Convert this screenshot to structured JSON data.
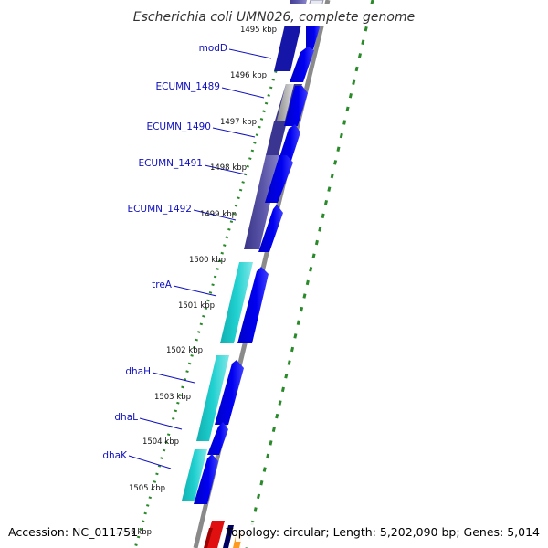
{
  "header": {
    "title": "Escherichia coli UMN026, complete genome"
  },
  "footer": {
    "accession": "Accession: NC_011751",
    "summary": "Topology: circular; Length: 5,202,090 bp; Genes: 5,014"
  },
  "ticks": [
    {
      "label": "1495 kbp"
    },
    {
      "label": "1496 kbp"
    },
    {
      "label": "1497 kbp"
    },
    {
      "label": "1498 kbp"
    },
    {
      "label": "1499 kbp"
    },
    {
      "label": "1500 kbp"
    },
    {
      "label": "1501 kbp"
    },
    {
      "label": "1502 kbp"
    },
    {
      "label": "1503 kbp"
    },
    {
      "label": "1504 kbp"
    },
    {
      "label": "1505 kbp"
    },
    {
      "label": "1506 kbp"
    }
  ],
  "genes": [
    {
      "label": "modD"
    },
    {
      "label": "ECUMN_1489"
    },
    {
      "label": "ECUMN_1490"
    },
    {
      "label": "ECUMN_1491"
    },
    {
      "label": "ECUMN_1492"
    },
    {
      "label": "treA"
    },
    {
      "label": "dhaH"
    },
    {
      "label": "dhaL"
    },
    {
      "label": "dhaK"
    }
  ],
  "colors": {
    "cds": "#0000e0",
    "cog_purple": "#5a55a8",
    "cog_cyan": "#20c8c8",
    "backbone": "#8a8a8a",
    "gc_dots": "#2a8a2a",
    "label_line": "#1010c0",
    "rna_red": "#e01010"
  }
}
